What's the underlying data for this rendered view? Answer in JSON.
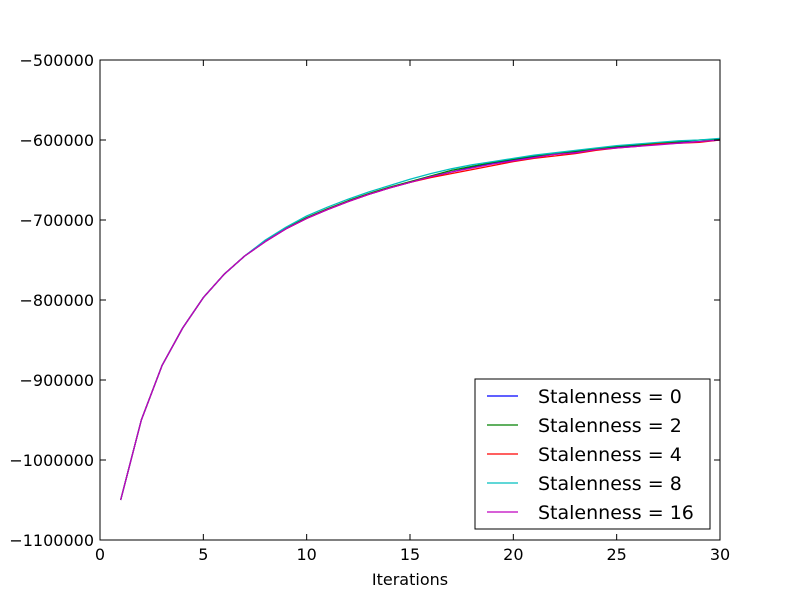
{
  "chart_data": {
    "type": "line",
    "title": "",
    "xlabel": "Iterations",
    "ylabel": "",
    "xlim": [
      0,
      30
    ],
    "ylim": [
      -1100000,
      -500000
    ],
    "x_ticks": [
      0,
      5,
      10,
      15,
      20,
      25,
      30
    ],
    "x_tick_labels": [
      "0",
      "5",
      "10",
      "15",
      "20",
      "25",
      "30"
    ],
    "y_ticks": [
      -1100000,
      -1000000,
      -900000,
      -800000,
      -700000,
      -600000,
      -500000
    ],
    "y_tick_labels": [
      "−1100000",
      "−1000000",
      "−900000",
      "−800000",
      "−700000",
      "−600000",
      "−500000"
    ],
    "grid": false,
    "legend_position": "lower-right",
    "x": [
      1,
      2,
      3,
      4,
      5,
      6,
      7,
      8,
      9,
      10,
      11,
      12,
      13,
      14,
      15,
      16,
      17,
      18,
      19,
      20,
      21,
      22,
      23,
      24,
      25,
      26,
      27,
      28,
      29,
      30
    ],
    "series": [
      {
        "name": "Stalenness = 0",
        "color": "#0000ff",
        "values": [
          -1050000,
          -950000,
          -882000,
          -835000,
          -797000,
          -768000,
          -745000,
          -727000,
          -711000,
          -698000,
          -687000,
          -677000,
          -668000,
          -660000,
          -653000,
          -646000,
          -640000,
          -634000,
          -629000,
          -625000,
          -621000,
          -618000,
          -615000,
          -612000,
          -609000,
          -607000,
          -605000,
          -603000,
          -602000,
          -600000
        ]
      },
      {
        "name": "Stalenness = 2",
        "color": "#008000",
        "values": [
          -1050000,
          -950000,
          -882000,
          -835000,
          -797000,
          -768000,
          -745000,
          -726000,
          -710000,
          -697000,
          -686000,
          -676000,
          -667000,
          -659000,
          -652000,
          -645000,
          -638000,
          -633000,
          -628000,
          -624000,
          -620000,
          -617000,
          -614000,
          -611000,
          -608000,
          -606000,
          -604000,
          -602000,
          -600000,
          -599000
        ]
      },
      {
        "name": "Stalenness = 4",
        "color": "#ff0000",
        "values": [
          -1050000,
          -950000,
          -882000,
          -835000,
          -797000,
          -768000,
          -745000,
          -727000,
          -711000,
          -698000,
          -687000,
          -677000,
          -668000,
          -660000,
          -653000,
          -647000,
          -642000,
          -637000,
          -632000,
          -627000,
          -623000,
          -620000,
          -617000,
          -613000,
          -610000,
          -608000,
          -605000,
          -604000,
          -603000,
          -600000
        ]
      },
      {
        "name": "Stalenness = 8",
        "color": "#00bfbf",
        "values": [
          -1050000,
          -950000,
          -882000,
          -835000,
          -797000,
          -768000,
          -745000,
          -725000,
          -709000,
          -695000,
          -684000,
          -674000,
          -665000,
          -657000,
          -649000,
          -642000,
          -636000,
          -631000,
          -627000,
          -623000,
          -619000,
          -616000,
          -613000,
          -610000,
          -607000,
          -605000,
          -603000,
          -601000,
          -600000,
          -598000
        ]
      },
      {
        "name": "Stalenness = 16",
        "color": "#bf00bf",
        "values": [
          -1050000,
          -950000,
          -882000,
          -835000,
          -797000,
          -768000,
          -745000,
          -727000,
          -711000,
          -698000,
          -687000,
          -677000,
          -668000,
          -660000,
          -653000,
          -646000,
          -640000,
          -635000,
          -630000,
          -626000,
          -622000,
          -618000,
          -616000,
          -612000,
          -610000,
          -608000,
          -606000,
          -604000,
          -602000,
          -600000
        ]
      }
    ]
  }
}
